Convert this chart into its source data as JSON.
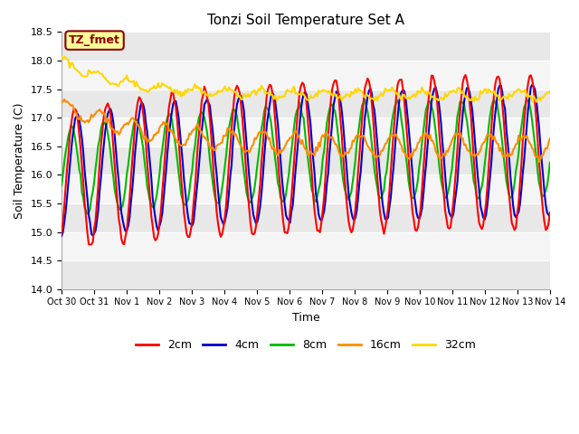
{
  "title": "Tonzi Soil Temperature Set A",
  "xlabel": "Time",
  "ylabel": "Soil Temperature (C)",
  "ylim": [
    14.0,
    18.5
  ],
  "colors": {
    "2cm": "#FF0000",
    "4cm": "#0000CC",
    "8cm": "#00BB00",
    "16cm": "#FF8C00",
    "32cm": "#FFD700"
  },
  "xtick_labels": [
    "Oct 30",
    "Oct 31",
    "Nov 1",
    "Nov 2",
    "Nov 3",
    "Nov 4",
    "Nov 5",
    "Nov 6",
    "Nov 7",
    "Nov 8",
    "Nov 9",
    "Nov 10",
    "Nov 11",
    "Nov 12",
    "Nov 13",
    "Nov 14"
  ],
  "xtick_positions": [
    0,
    1,
    2,
    3,
    4,
    5,
    6,
    7,
    8,
    9,
    10,
    11,
    12,
    13,
    14,
    15
  ],
  "yticks": [
    14.0,
    14.5,
    15.0,
    15.5,
    16.0,
    16.5,
    17.0,
    17.5,
    18.0,
    18.5
  ],
  "band_colors": [
    "#E8E8E8",
    "#F5F5F5"
  ],
  "fig_bg": "#FFFFFF",
  "annotation_text": "TZ_fmet",
  "annotation_color": "#8B0000",
  "annotation_bg": "#FFFF99",
  "annotation_border": "#8B0000"
}
